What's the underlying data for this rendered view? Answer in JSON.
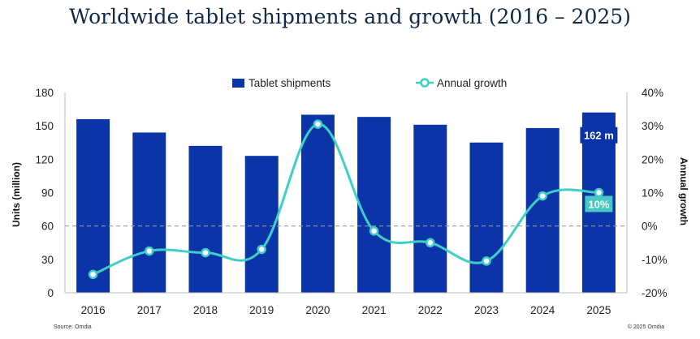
{
  "chart_data": {
    "type": "bar",
    "title": "Worldwide tablet shipments and growth (2016 – 2025)",
    "categories": [
      "2016",
      "2017",
      "2018",
      "2019",
      "2020",
      "2021",
      "2022",
      "2023",
      "2024",
      "2025"
    ],
    "series": [
      {
        "name": "Tablet shipments",
        "type": "bar",
        "axis": "left",
        "values": [
          156,
          144,
          132,
          123,
          160,
          158,
          151,
          135,
          148,
          162
        ]
      },
      {
        "name": "Annual growth",
        "type": "line",
        "axis": "right",
        "values": [
          -14.5,
          -7.5,
          -8,
          -7,
          30.5,
          -1.5,
          -5,
          -10.5,
          9,
          10
        ]
      }
    ],
    "ylabel": "Units (million)",
    "ylim": [
      0,
      180
    ],
    "yticks": [
      "0",
      "30",
      "60",
      "90",
      "120",
      "150",
      "180"
    ],
    "y2label": "Annual growth",
    "y2lim": [
      -20,
      40
    ],
    "y2ticks": [
      "-20%",
      "-10%",
      "0%",
      "10%",
      "20%",
      "30%",
      "40%"
    ],
    "zero_growth_line": true,
    "callouts": [
      {
        "series": 0,
        "index": 9,
        "text": "162 m"
      },
      {
        "series": 1,
        "index": 9,
        "text": "10%"
      }
    ],
    "legend": "top-center",
    "colors": {
      "bars": "#0a34a8",
      "line": "#3fcfc4",
      "title": "#10294a",
      "callout_bg": "#0a34a8",
      "callout2_bg": "#47c9c2"
    }
  },
  "footer": {
    "source": "Source: Omdia",
    "copyright": "© 2025 Omdia"
  }
}
